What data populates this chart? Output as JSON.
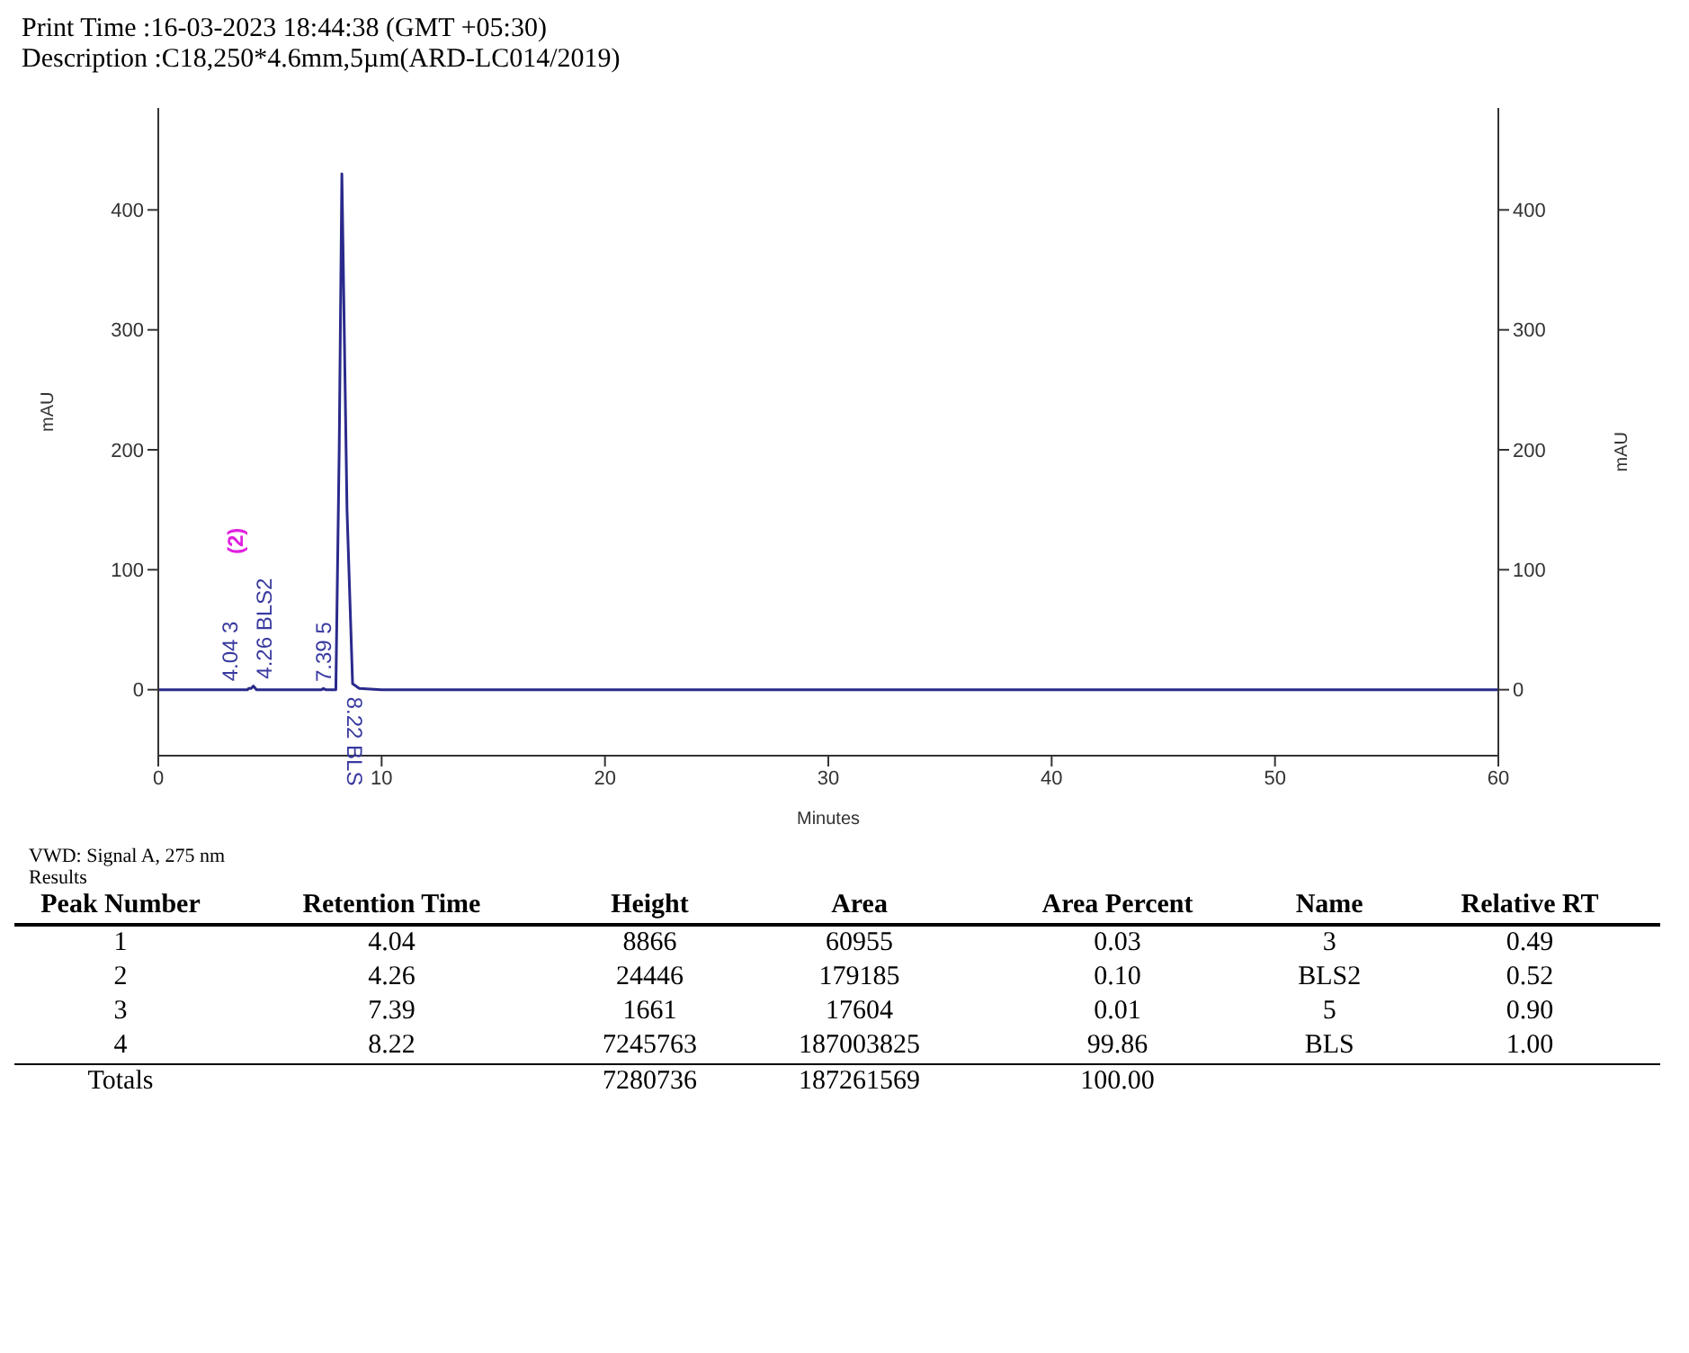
{
  "chart_data": {
    "type": "line",
    "title": "Print Time :16-03-2023 18:44:38 (GMT +05:30)",
    "subtitle": "Description :C18,250*4.6mm,5µm(ARD-LC014/2019)",
    "xlabel": "Minutes",
    "ylabel": "mAU",
    "y2label": "mAU",
    "x": [
      0,
      4.0,
      4.04,
      4.15,
      4.26,
      4.4,
      7.3,
      7.39,
      7.5,
      7.95,
      8.1,
      8.22,
      8.45,
      8.7,
      9.0,
      10.0,
      60
    ],
    "series": [
      {
        "color": "#2a2a8c",
        "values": [
          0,
          0,
          1,
          1,
          3,
          0,
          0,
          1,
          0,
          0,
          200,
          430,
          150,
          5,
          1,
          0,
          0
        ]
      }
    ],
    "xlim": [
      0,
      60
    ],
    "xticks": [
      0,
      10,
      20,
      30,
      40,
      50,
      60
    ],
    "ylim": [
      -55,
      485
    ],
    "yticks": [
      0,
      100,
      200,
      300,
      400
    ],
    "y2lim": [
      -55,
      485
    ],
    "y2ticks": [
      0,
      100,
      200,
      300,
      400
    ],
    "grid": false,
    "legend": false,
    "marker": "none",
    "line_style": "solid",
    "annotations": [
      {
        "text": "4.04  3",
        "x": 4.04,
        "y": 1
      },
      {
        "text": "4.26  BLS2",
        "x": 4.26,
        "y": 3
      },
      "(2)",
      {
        "text": "7.39  5",
        "x": 7.39,
        "y": 0.5
      },
      {
        "text": "8.22  BLS",
        "x": 8.22,
        "y": 0
      },
      "VWD: Signal A, 275 nm Results",
      "Peak Number\tRetention Time\tHeight\tArea\tArea Percent\tName\tRelative RT",
      "1\t4.04\t8866\t60955\t0.03\t3\t0.49",
      "2\t4.26\t24446\t179185\t0.10\tBLS2\t0.52",
      "3\t7.39\t1661\t17604\t0.01\t5\t0.90",
      "4\t8.22\t7245763\t187003825\t99.86\tBLS\t1.00",
      "Totals\t\t7280736\t187261569\t100.00\t\t"
    ]
  }
}
